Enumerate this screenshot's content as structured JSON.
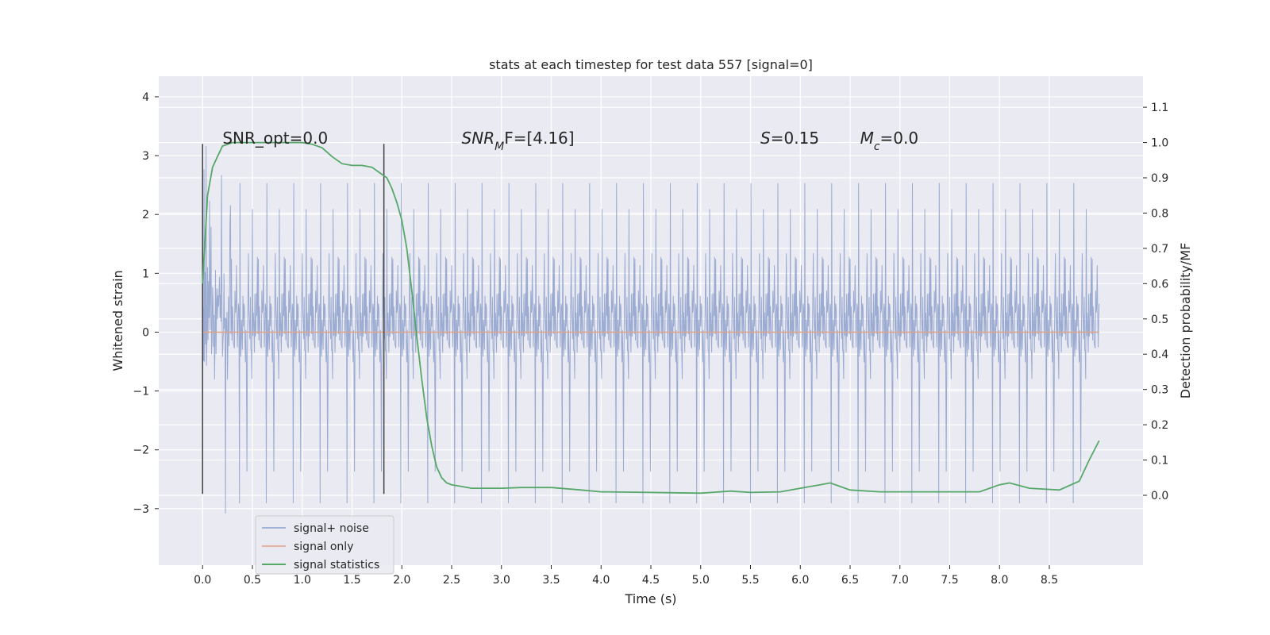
{
  "chart_data": {
    "type": "line",
    "title": "stats at each timestep for test data 557 [signal=0]",
    "xlabel": "Time (s)",
    "ylabel": "Whitened strain",
    "y2label": "Detection probability/MF",
    "xlim": [
      -0.44,
      9.44
    ],
    "ylim": [
      -3.96,
      4.35
    ],
    "y2lim": [
      -0.198,
      1.188
    ],
    "xticks": [
      "0.0",
      "0.5",
      "1.0",
      "1.5",
      "2.0",
      "2.5",
      "3.0",
      "3.5",
      "4.0",
      "4.5",
      "5.0",
      "5.5",
      "6.0",
      "6.5",
      "7.0",
      "7.5",
      "8.0",
      "8.5"
    ],
    "yticks": [
      "−3",
      "−2",
      "−1",
      "0",
      "1",
      "2",
      "3",
      "4"
    ],
    "y2ticks": [
      "0.0",
      "0.1",
      "0.2",
      "0.3",
      "0.4",
      "0.5",
      "0.6",
      "0.7",
      "0.8",
      "0.9",
      "1.0",
      "1.1"
    ],
    "grid": true,
    "legend_position": "lower-left",
    "annotations": [
      {
        "id": "snr_opt",
        "text": "SNR_opt=0.0",
        "x": 0.2,
        "y": 3.2
      },
      {
        "id": "snr_mf",
        "text": "SNR",
        "sub": "M",
        "rest": "F=[4.16]",
        "x": 2.6,
        "y": 3.2
      },
      {
        "id": "s",
        "text": "S",
        "rest": "=0.15",
        "x": 5.6,
        "y": 3.2
      },
      {
        "id": "mc",
        "text": "M",
        "sub": "c",
        "rest": "=0.0",
        "x": 6.6,
        "y": 3.2
      }
    ],
    "vlines": [
      {
        "x": 0.0,
        "y": [
          -2.75,
          3.2
        ]
      },
      {
        "x": 1.82,
        "y": [
          -2.75,
          3.2
        ]
      }
    ],
    "series": [
      {
        "name": "signal+ noise",
        "axis": "left",
        "kind": "noise",
        "x_range": [
          0.0,
          9.0
        ],
        "band": [
          -1.5,
          1.5
        ],
        "spike_max": 4.0,
        "spike_min": -3.5,
        "color": "#8da0cb"
      },
      {
        "name": "signal only",
        "axis": "left",
        "x": [
          0.0,
          9.0
        ],
        "y": [
          0.0,
          0.0
        ],
        "color": "#e1a488"
      },
      {
        "name": "signal statistics",
        "axis": "right",
        "x": [
          0.0,
          0.05,
          0.1,
          0.15,
          0.2,
          0.3,
          0.5,
          0.8,
          1.0,
          1.1,
          1.2,
          1.3,
          1.4,
          1.5,
          1.6,
          1.7,
          1.8,
          1.85,
          1.9,
          1.95,
          2.0,
          2.05,
          2.1,
          2.15,
          2.2,
          2.25,
          2.3,
          2.35,
          2.4,
          2.45,
          2.5,
          2.6,
          2.7,
          2.8,
          3.0,
          3.2,
          3.5,
          3.8,
          4.0,
          4.5,
          5.0,
          5.3,
          5.5,
          5.8,
          6.0,
          6.2,
          6.3,
          6.5,
          6.8,
          7.0,
          7.5,
          7.8,
          8.0,
          8.1,
          8.3,
          8.6,
          8.8,
          8.9,
          9.0
        ],
        "y": [
          0.6,
          0.85,
          0.93,
          0.96,
          0.99,
          1.0,
          1.0,
          1.0,
          1.0,
          0.995,
          0.985,
          0.96,
          0.94,
          0.935,
          0.935,
          0.93,
          0.91,
          0.9,
          0.87,
          0.83,
          0.78,
          0.7,
          0.58,
          0.45,
          0.33,
          0.22,
          0.14,
          0.08,
          0.05,
          0.035,
          0.03,
          0.025,
          0.02,
          0.02,
          0.02,
          0.022,
          0.022,
          0.015,
          0.01,
          0.008,
          0.006,
          0.012,
          0.008,
          0.01,
          0.02,
          0.03,
          0.035,
          0.015,
          0.01,
          0.01,
          0.01,
          0.01,
          0.03,
          0.035,
          0.02,
          0.015,
          0.04,
          0.1,
          0.155
        ],
        "color": "#55a868"
      }
    ]
  }
}
